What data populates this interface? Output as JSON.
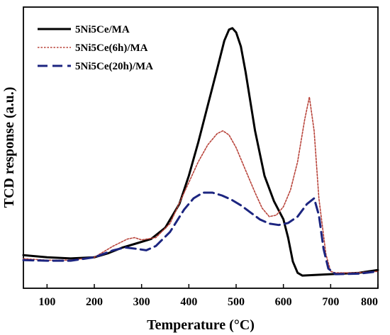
{
  "chart_data": {
    "type": "line",
    "xlabel": "Temperature (°C)",
    "ylabel": "TCD response (a.u.)",
    "xlim": [
      50,
      800
    ],
    "xticks": [
      100,
      200,
      300,
      400,
      500,
      600,
      700,
      800
    ],
    "ylim": [
      0,
      1
    ],
    "yticks_shown": false,
    "grid": false,
    "legend_position": "top-left",
    "series": [
      {
        "name": "5Ni5Ce/MA",
        "color": "#000000",
        "dash": "solid",
        "points": [
          [
            50,
            0.118
          ],
          [
            100,
            0.11
          ],
          [
            150,
            0.106
          ],
          [
            200,
            0.11
          ],
          [
            230,
            0.125
          ],
          [
            260,
            0.145
          ],
          [
            290,
            0.16
          ],
          [
            320,
            0.175
          ],
          [
            350,
            0.215
          ],
          [
            380,
            0.3
          ],
          [
            400,
            0.4
          ],
          [
            420,
            0.52
          ],
          [
            440,
            0.65
          ],
          [
            460,
            0.78
          ],
          [
            475,
            0.88
          ],
          [
            485,
            0.92
          ],
          [
            492,
            0.925
          ],
          [
            500,
            0.91
          ],
          [
            510,
            0.86
          ],
          [
            520,
            0.77
          ],
          [
            540,
            0.56
          ],
          [
            560,
            0.4
          ],
          [
            580,
            0.31
          ],
          [
            600,
            0.245
          ],
          [
            610,
            0.18
          ],
          [
            620,
            0.095
          ],
          [
            630,
            0.055
          ],
          [
            640,
            0.045
          ],
          [
            700,
            0.05
          ],
          [
            760,
            0.055
          ],
          [
            800,
            0.065
          ]
        ]
      },
      {
        "name": "5Ni5Ce(6h)/MA",
        "color": "#b8433a",
        "dash": "dotted",
        "points": [
          [
            50,
            0.105
          ],
          [
            100,
            0.1
          ],
          [
            150,
            0.1
          ],
          [
            200,
            0.11
          ],
          [
            240,
            0.15
          ],
          [
            270,
            0.175
          ],
          [
            285,
            0.18
          ],
          [
            300,
            0.172
          ],
          [
            330,
            0.18
          ],
          [
            360,
            0.23
          ],
          [
            390,
            0.34
          ],
          [
            420,
            0.45
          ],
          [
            440,
            0.51
          ],
          [
            460,
            0.55
          ],
          [
            472,
            0.56
          ],
          [
            485,
            0.545
          ],
          [
            500,
            0.5
          ],
          [
            520,
            0.42
          ],
          [
            540,
            0.34
          ],
          [
            555,
            0.285
          ],
          [
            570,
            0.255
          ],
          [
            585,
            0.26
          ],
          [
            600,
            0.29
          ],
          [
            615,
            0.35
          ],
          [
            630,
            0.45
          ],
          [
            645,
            0.6
          ],
          [
            655,
            0.68
          ],
          [
            665,
            0.56
          ],
          [
            675,
            0.32
          ],
          [
            690,
            0.12
          ],
          [
            700,
            0.06
          ],
          [
            710,
            0.055
          ],
          [
            750,
            0.055
          ],
          [
            800,
            0.06
          ]
        ]
      },
      {
        "name": "5Ni5Ce(20h)/MA",
        "color": "#1c2580",
        "dash": "dashed",
        "points": [
          [
            50,
            0.1
          ],
          [
            100,
            0.098
          ],
          [
            150,
            0.098
          ],
          [
            200,
            0.11
          ],
          [
            240,
            0.135
          ],
          [
            265,
            0.145
          ],
          [
            290,
            0.14
          ],
          [
            310,
            0.135
          ],
          [
            330,
            0.15
          ],
          [
            360,
            0.2
          ],
          [
            390,
            0.28
          ],
          [
            410,
            0.32
          ],
          [
            430,
            0.34
          ],
          [
            450,
            0.34
          ],
          [
            470,
            0.33
          ],
          [
            490,
            0.315
          ],
          [
            510,
            0.295
          ],
          [
            530,
            0.27
          ],
          [
            550,
            0.245
          ],
          [
            570,
            0.23
          ],
          [
            590,
            0.225
          ],
          [
            610,
            0.232
          ],
          [
            630,
            0.255
          ],
          [
            650,
            0.3
          ],
          [
            665,
            0.32
          ],
          [
            675,
            0.26
          ],
          [
            685,
            0.14
          ],
          [
            695,
            0.07
          ],
          [
            710,
            0.05
          ],
          [
            760,
            0.052
          ],
          [
            800,
            0.06
          ]
        ]
      }
    ]
  }
}
